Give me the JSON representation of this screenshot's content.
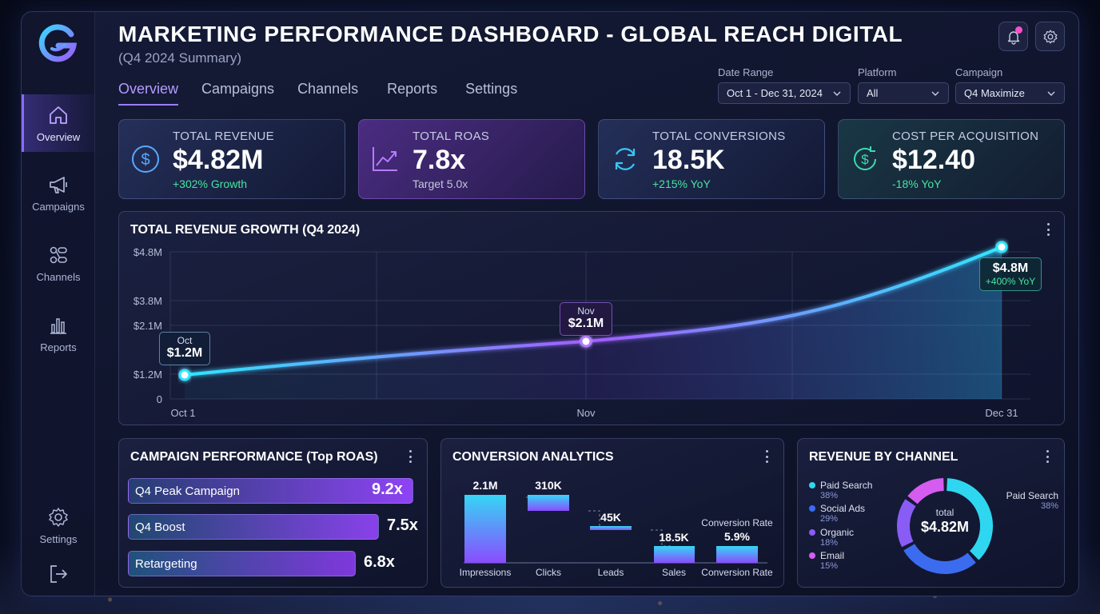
{
  "header": {
    "title": "MARKETING PERFORMANCE DASHBOARD - GLOBAL REACH DIGITAL",
    "subtitle": "(Q4 2024 Summary)"
  },
  "tabs": [
    {
      "label": "Overview",
      "active": true
    },
    {
      "label": "Campaigns"
    },
    {
      "label": "Channels"
    },
    {
      "label": "Reports"
    },
    {
      "label": "Settings"
    }
  ],
  "sidebar": {
    "items": [
      {
        "label": "Overview",
        "icon": "home-icon",
        "active": true
      },
      {
        "label": "Campaigns",
        "icon": "megaphone-icon"
      },
      {
        "label": "Channels",
        "icon": "channels-icon"
      },
      {
        "label": "Reports",
        "icon": "bar-chart-icon"
      }
    ],
    "settings_label": "Settings",
    "logout_icon": "logout-icon"
  },
  "filters": {
    "date_range": {
      "label": "Date Range",
      "value": "Oct 1 - Dec 31, 2024"
    },
    "platform": {
      "label": "Platform",
      "value": "All"
    },
    "campaign": {
      "label": "Campaign",
      "value": "Q4 Maximize"
    }
  },
  "kpis": {
    "revenue": {
      "label": "TOTAL REVENUE",
      "value": "$4.82M",
      "sub": "+302% Growth",
      "icon": "dollar-icon"
    },
    "roas": {
      "label": "TOTAL ROAS",
      "value": "7.8x",
      "sub": "Target 5.0x",
      "icon": "trend-up-icon"
    },
    "conversions": {
      "label": "TOTAL CONVERSIONS",
      "value": "18.5K",
      "sub": "+215% YoY",
      "icon": "refresh-icon"
    },
    "cpa": {
      "label": "COST PER ACQUISITION",
      "value": "$12.40",
      "sub": "-18% YoY",
      "icon": "dollar-cycle-icon"
    }
  },
  "revenue_chart": {
    "title": "TOTAL REVENUE GROWTH (Q4 2024)",
    "y_ticks": [
      "$4.8M",
      "$3.8M",
      "$2.1M",
      "$1.2M",
      "0"
    ],
    "x_ticks": [
      "Oct 1",
      "Nov",
      "Dec 31"
    ],
    "callouts": {
      "oct": {
        "label": "Oct",
        "value": "$1.2M"
      },
      "nov": {
        "label": "Nov",
        "value": "$2.1M"
      },
      "dec": {
        "value": "$4.8M",
        "sub": "+400% YoY"
      }
    }
  },
  "campaigns": {
    "title": "CAMPAIGN PERFORMANCE (Top ROAS)",
    "items": [
      {
        "name": "Q4 Peak Campaign",
        "value": "9.2x",
        "roas": 9.2
      },
      {
        "name": "Q4 Boost",
        "value": "7.5x",
        "roas": 7.5
      },
      {
        "name": "Retargeting",
        "value": "6.8x",
        "roas": 6.8
      }
    ]
  },
  "conversion": {
    "title": "CONVERSION ANALYTICS",
    "steps": [
      {
        "label": "Impressions",
        "value": "2.1M"
      },
      {
        "label": "Clicks",
        "value": "310K"
      },
      {
        "label": "Leads",
        "value": "45K"
      },
      {
        "label": "Sales",
        "value": "18.5K"
      },
      {
        "label": "Conversion Rate",
        "value": "5.9%",
        "top_label": "Conversion Rate"
      }
    ]
  },
  "channels": {
    "title": "REVENUE BY CHANNEL",
    "center_label": "total",
    "center_value": "$4.82M",
    "callout_name": "Paid Search",
    "callout_pct": "38%",
    "items": [
      {
        "name": "Paid Search",
        "pct": "38%",
        "share": 38,
        "color": "#2fd6f0"
      },
      {
        "name": "Social Ads",
        "pct": "29%",
        "share": 29,
        "color": "#3b6cf0"
      },
      {
        "name": "Organic",
        "pct": "18%",
        "share": 18,
        "color": "#8a5cf6"
      },
      {
        "name": "Email",
        "pct": "15%",
        "share": 15,
        "color": "#d65cf0"
      }
    ]
  },
  "chart_data": {
    "type": "line",
    "title": "TOTAL REVENUE GROWTH (Q4 2024)",
    "x": [
      "Oct 1",
      "Nov",
      "Dec 31"
    ],
    "series": [
      {
        "values": [
          1.2,
          2.1,
          4.8
        ]
      }
    ],
    "y_tick_labels": [
      "0",
      "$1.2M",
      "$2.1M",
      "$3.8M",
      "$4.8M"
    ],
    "grid": true
  }
}
